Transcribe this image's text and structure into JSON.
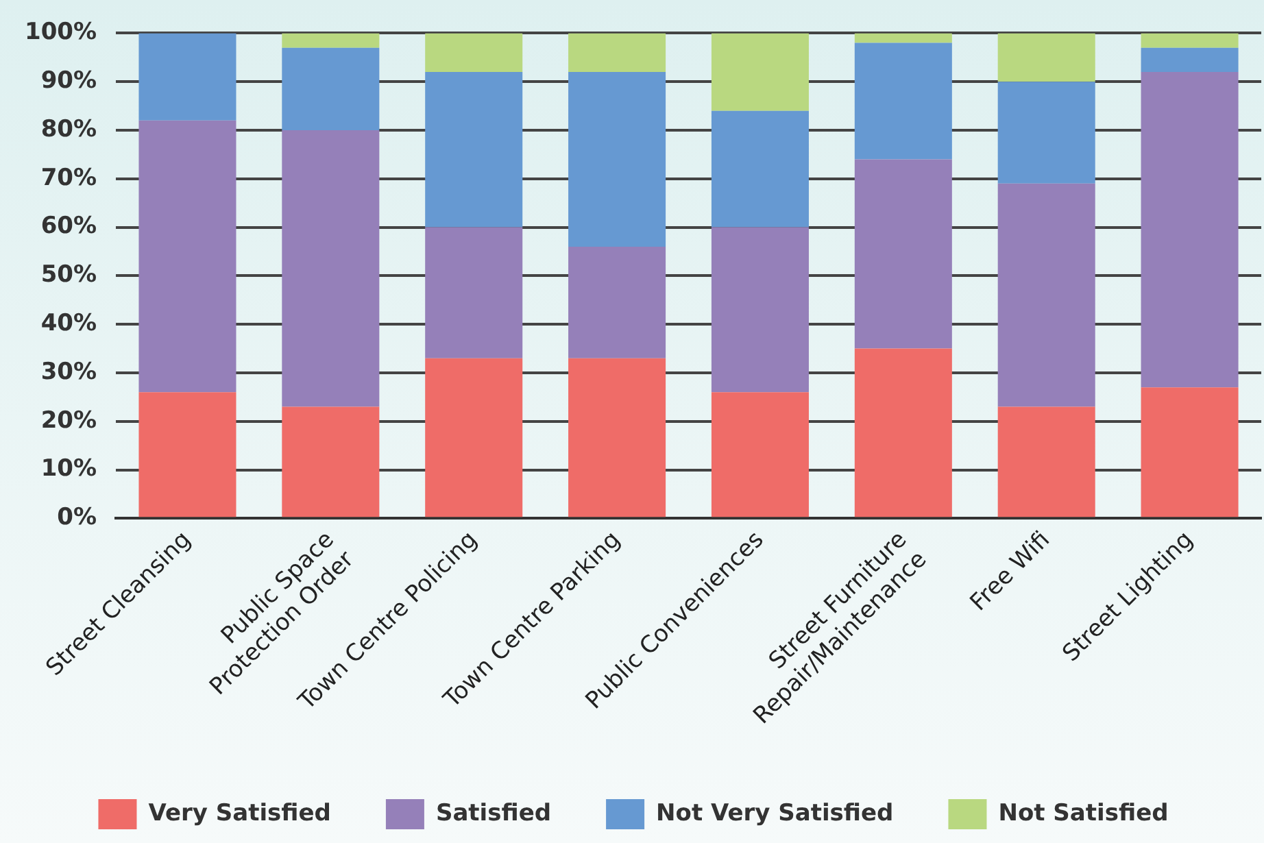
{
  "chart_data": {
    "type": "bar",
    "stacked": true,
    "categories": [
      "Street Cleansing",
      "Public Space\nProtection Order",
      "Town Centre Policing",
      "Town Centre Parking",
      "Public Conveniences",
      "Street Furniture\nRepair/Maintenance",
      "Free Wifi",
      "Street Lighting"
    ],
    "series": [
      {
        "name": "Very Satisfied",
        "color": "#ef6c68",
        "values": [
          26,
          23,
          33,
          33,
          26,
          35,
          23,
          27
        ]
      },
      {
        "name": "Satisfied",
        "color": "#9580b9",
        "values": [
          56,
          57,
          27,
          23,
          34,
          39,
          46,
          65
        ]
      },
      {
        "name": "Not Very Satisfied",
        "color": "#6699d2",
        "values": [
          18,
          17,
          32,
          36,
          24,
          24,
          21,
          5
        ]
      },
      {
        "name": "Not Satisfied",
        "color": "#b9d880",
        "values": [
          0,
          3,
          8,
          8,
          16,
          2,
          10,
          3
        ]
      }
    ],
    "ylim": [
      0,
      100
    ],
    "yticks": [
      {
        "value": 0,
        "label": "0%"
      },
      {
        "value": 10,
        "label": "10%"
      },
      {
        "value": 20,
        "label": "20%"
      },
      {
        "value": 30,
        "label": "30%"
      },
      {
        "value": 40,
        "label": "40%"
      },
      {
        "value": 50,
        "label": "50%"
      },
      {
        "value": 60,
        "label": "60%"
      },
      {
        "value": 70,
        "label": "70%"
      },
      {
        "value": 80,
        "label": "80%"
      },
      {
        "value": 90,
        "label": "90%"
      },
      {
        "value": 100,
        "label": "100%"
      }
    ],
    "grid": "y",
    "legend": "bottom"
  }
}
